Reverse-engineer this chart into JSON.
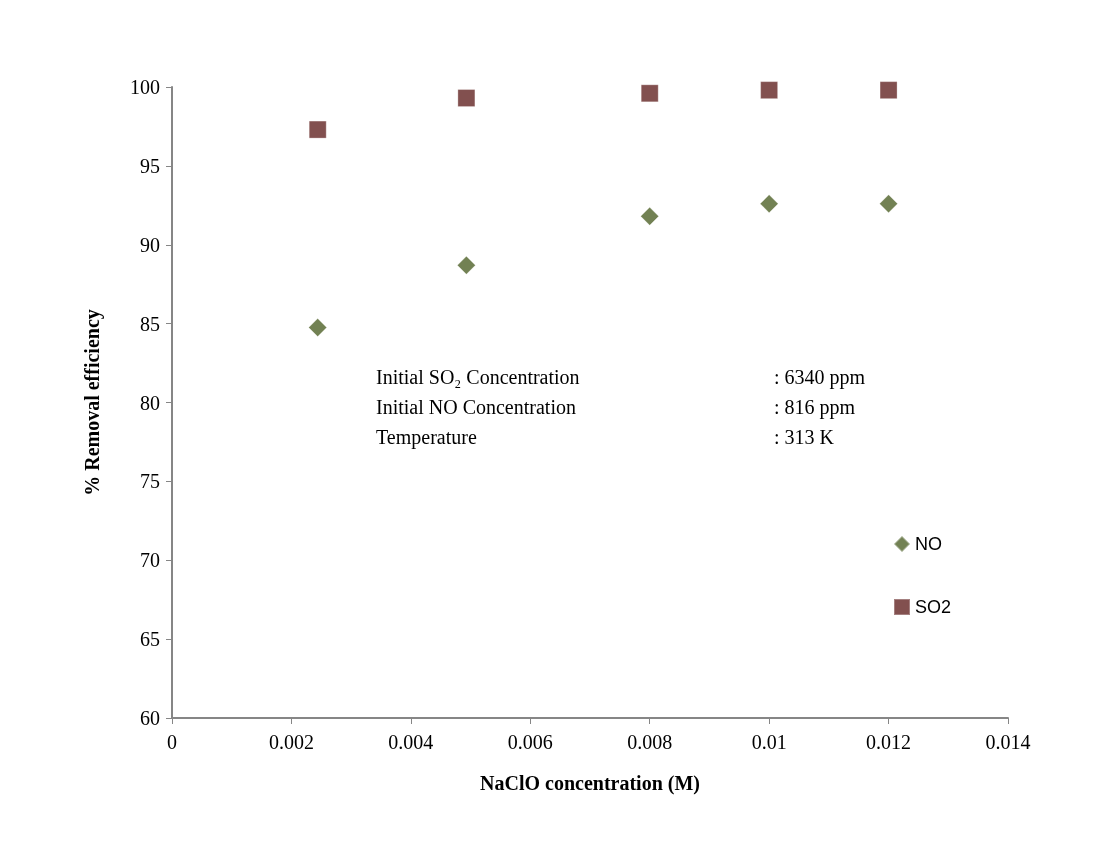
{
  "chart_data": {
    "type": "scatter",
    "xlabel": "NaClO concentration (M)",
    "ylabel": "% Removal efficiency",
    "x": [
      0.00244,
      0.00493,
      0.008,
      0.01,
      0.012
    ],
    "series": [
      {
        "name": "NO",
        "color": "#4f6228",
        "marker": "diamond",
        "values": [
          84.75,
          88.7,
          91.8,
          92.6,
          92.6
        ]
      },
      {
        "name": "SO2",
        "color": "#632423",
        "marker": "square",
        "values": [
          97.3,
          99.3,
          99.6,
          99.8,
          99.8
        ]
      }
    ],
    "xlim": [
      0,
      0.014
    ],
    "xticks": [
      0,
      0.002,
      0.004,
      0.006,
      0.008,
      0.01,
      0.012,
      0.014
    ],
    "ylim": [
      60,
      100
    ],
    "yticks": [
      60,
      65,
      70,
      75,
      80,
      85,
      90,
      95,
      100
    ],
    "grid": false,
    "legend": "right",
    "annotations": [
      "Initial SO₂ Concentration",
      ": 6340 ppm",
      "Initial NO Concentration",
      ": 816 ppm",
      "Temperature",
      ": 313 K"
    ]
  }
}
